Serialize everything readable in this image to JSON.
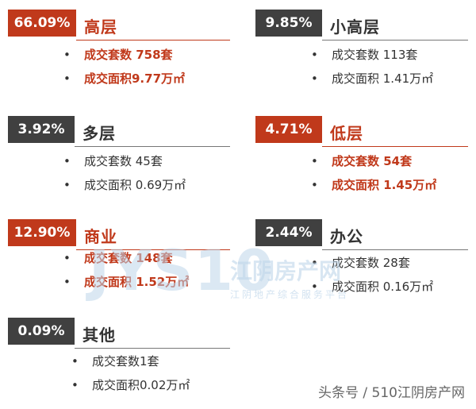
{
  "chart_data": {
    "type": "table",
    "categories": [
      {
        "percent": "66.09%",
        "name": "高层",
        "highlight": true,
        "units_text": "成交套数 758套",
        "area_text": "成交面积9.77万㎡"
      },
      {
        "percent": "9.85%",
        "name": "小高层",
        "highlight": false,
        "units_text": "成交套数 113套",
        "area_text": "成交面积 1.41万㎡"
      },
      {
        "percent": "3.92%",
        "name": "多层",
        "highlight": false,
        "units_text": "成交套数 45套",
        "area_text": "成交面积  0.69万㎡"
      },
      {
        "percent": "4.71%",
        "name": "低层",
        "highlight": true,
        "units_text": "成交套数  54套",
        "area_text": "成交面积  1.45万㎡"
      },
      {
        "percent": "12.90%",
        "name": "商业",
        "highlight": true,
        "units_text": "成交套数 148套",
        "area_text": "成交面积 1.52万㎡"
      },
      {
        "percent": "2.44%",
        "name": "办公",
        "highlight": false,
        "units_text": "成交套数 28套",
        "area_text": "成交面积  0.16万㎡"
      },
      {
        "percent": "0.09%",
        "name": "其他",
        "highlight": false,
        "units_text": "成交套数1套",
        "area_text": "成交面积0.02万㎡"
      }
    ],
    "share_percent": [
      66.09,
      9.85,
      3.92,
      4.71,
      12.9,
      2.44,
      0.09
    ],
    "units_sold": [
      758,
      113,
      45,
      54,
      148,
      28,
      1
    ],
    "area_10k_sqm": [
      9.77,
      1.41,
      0.69,
      1.45,
      1.52,
      0.16,
      0.02
    ]
  },
  "bullet_symbol": "•",
  "watermark": {
    "logo_text": "JYS10",
    "site_name": "江阴房产网",
    "tagline": "江阴地产综合服务平台"
  },
  "footer": {
    "text": "头条号 / 510江阴房产网"
  },
  "colors": {
    "accent_red": "#c0391b",
    "badge_gray": "#404040",
    "text_dark": "#333333"
  }
}
